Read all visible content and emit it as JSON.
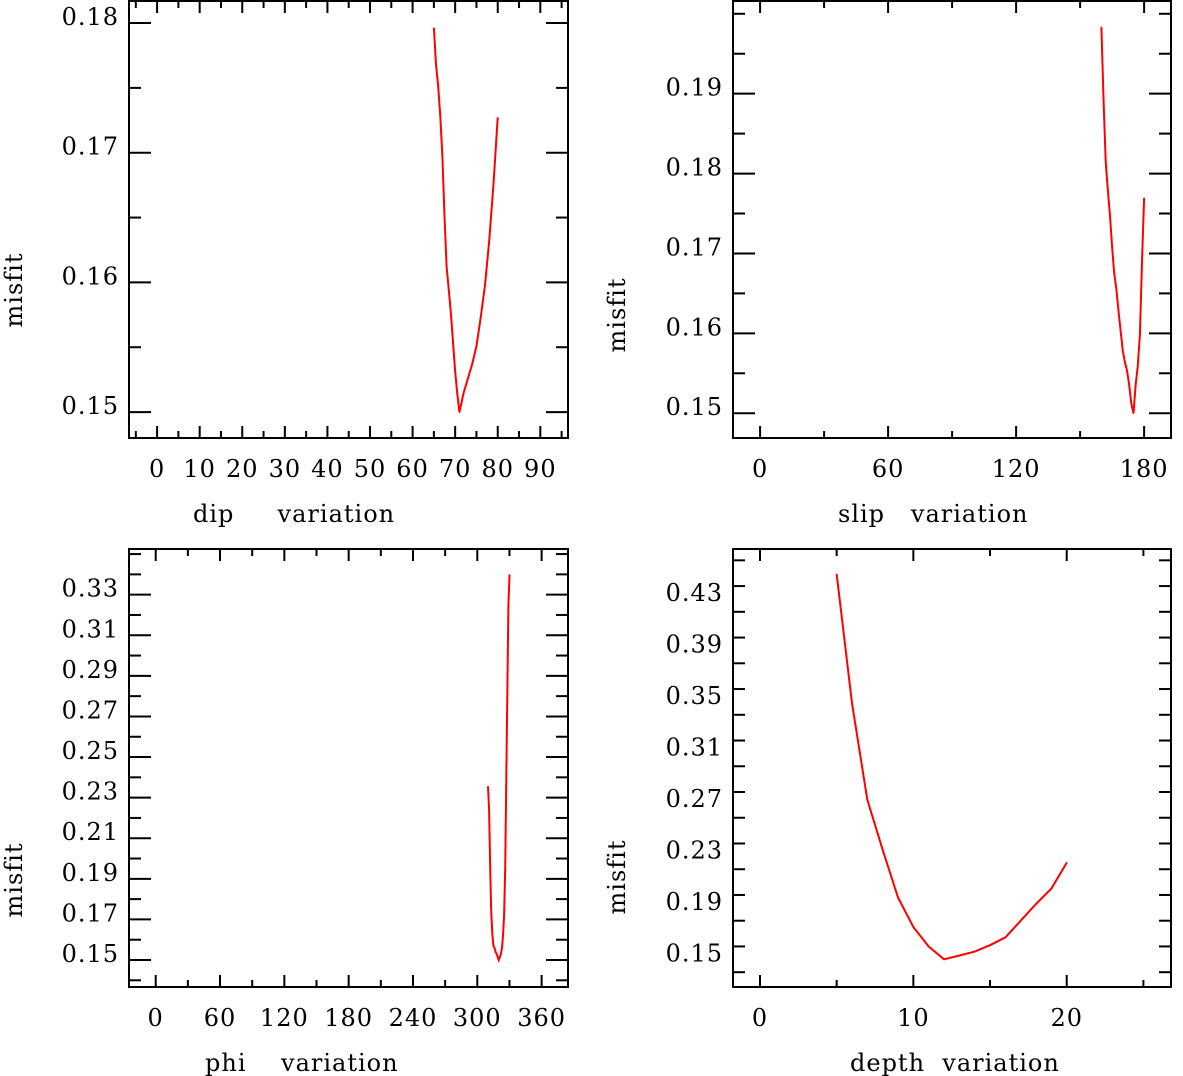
{
  "chart_data": [
    {
      "type": "line",
      "xlabel": "dip     variation",
      "ylabel": "misfit",
      "xlim": [
        -6.6,
        96.5
      ],
      "ylim": [
        0.148,
        0.1817
      ],
      "xticks": [
        0,
        10,
        20,
        30,
        40,
        50,
        60,
        70,
        80,
        90
      ],
      "xtick_labels": [
        "0",
        "10",
        "20",
        "30",
        "40",
        "50",
        "60",
        "70",
        "80",
        "90"
      ],
      "xminor": 5,
      "yticks": [
        0.15,
        0.16,
        0.17,
        0.18
      ],
      "ytick_labels": [
        "0.15",
        "0.16",
        "0.17",
        "0.18"
      ],
      "yminor": 0.005,
      "color": "#ff0000",
      "x": [
        65,
        65.5,
        66,
        66.5,
        67,
        67.5,
        68,
        68.5,
        69,
        69.5,
        70,
        70.5,
        71,
        72,
        73,
        74,
        75,
        76,
        77,
        78,
        79,
        80
      ],
      "y": [
        0.1796,
        0.1768,
        0.1752,
        0.1728,
        0.1697,
        0.1651,
        0.1612,
        0.1594,
        0.1576,
        0.1554,
        0.1531,
        0.1514,
        0.15,
        0.1515,
        0.1526,
        0.1537,
        0.1551,
        0.1573,
        0.1598,
        0.1632,
        0.1676,
        0.1727
      ]
    },
    {
      "type": "line",
      "xlabel": "slip   variation",
      "ylabel": "misfit",
      "xlim": [
        -12.7,
        192.6
      ],
      "ylim": [
        0.1469,
        0.2016
      ],
      "xticks": [
        0,
        60,
        120,
        180
      ],
      "xtick_labels": [
        "0",
        "60",
        "120",
        "180"
      ],
      "xminor": 30,
      "yticks": [
        0.15,
        0.16,
        0.17,
        0.18,
        0.19
      ],
      "ytick_labels": [
        "0.15",
        "0.16",
        "0.17",
        "0.18",
        "0.19"
      ],
      "yminor": 0.005,
      "color": "#ff0000",
      "x": [
        160,
        161,
        162,
        163,
        164,
        165,
        166,
        167,
        168,
        169,
        170,
        171,
        172,
        173,
        174,
        175,
        176,
        177,
        178,
        179,
        180
      ],
      "y": [
        0.1983,
        0.189,
        0.1815,
        0.178,
        0.1747,
        0.1708,
        0.1675,
        0.1655,
        0.1628,
        0.1602,
        0.1578,
        0.1564,
        0.1553,
        0.1535,
        0.1512,
        0.15,
        0.1535,
        0.1558,
        0.1598,
        0.169,
        0.1769
      ]
    },
    {
      "type": "line",
      "xlabel": "phi    variation",
      "ylabel": "misfit",
      "xlim": [
        -24.9,
        384.6
      ],
      "ylim": [
        0.1367,
        0.3525
      ],
      "xticks": [
        0,
        60,
        120,
        180,
        240,
        300,
        360
      ],
      "xtick_labels": [
        "0",
        "60",
        "120",
        "180",
        "240",
        "300",
        "360"
      ],
      "xminor": 30,
      "yticks": [
        0.15,
        0.17,
        0.19,
        0.21,
        0.23,
        0.25,
        0.27,
        0.29,
        0.31,
        0.33
      ],
      "ytick_labels": [
        "0.15",
        "0.17",
        "0.19",
        "0.21",
        "0.23",
        "0.25",
        "0.27",
        "0.29",
        "0.31",
        "0.33"
      ],
      "yminor": 0.01,
      "color": "#ff0000",
      "x": [
        310,
        311,
        312,
        313,
        314,
        315,
        316,
        317,
        318,
        319,
        320,
        321,
        322,
        323,
        324,
        325,
        326,
        327,
        328,
        329,
        330
      ],
      "y": [
        0.2354,
        0.224,
        0.195,
        0.174,
        0.163,
        0.157,
        0.156,
        0.154,
        0.153,
        0.1515,
        0.15,
        0.1515,
        0.153,
        0.156,
        0.162,
        0.172,
        0.195,
        0.24,
        0.2805,
        0.325,
        0.3397
      ]
    },
    {
      "type": "line",
      "xlabel": "depth  variation",
      "ylabel": "misfit",
      "xlim": [
        -1.76,
        26.8
      ],
      "ylim": [
        0.1285,
        0.4688
      ],
      "xticks": [
        0,
        10,
        20
      ],
      "xtick_labels": [
        "0",
        "10",
        "20"
      ],
      "xminor": 5,
      "yticks": [
        0.15,
        0.19,
        0.23,
        0.27,
        0.31,
        0.35,
        0.39,
        0.43
      ],
      "ytick_labels": [
        "0.15",
        "0.19",
        "0.23",
        "0.27",
        "0.31",
        "0.35",
        "0.39",
        "0.43"
      ],
      "yminor": 0.02,
      "color": "#ff0000",
      "x": [
        5,
        6,
        7,
        8,
        9,
        10,
        11,
        12,
        13,
        14,
        15,
        16,
        17,
        18,
        19,
        20
      ],
      "y": [
        0.449,
        0.349,
        0.274,
        0.235,
        0.198,
        0.175,
        0.16,
        0.15,
        0.153,
        0.156,
        0.161,
        0.167,
        0.18,
        0.193,
        0.205,
        0.225
      ]
    }
  ]
}
